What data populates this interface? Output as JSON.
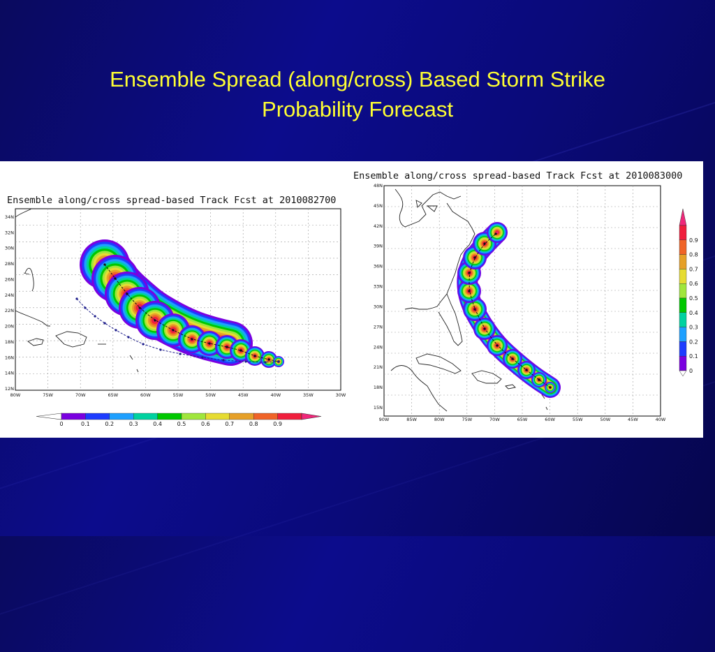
{
  "slide": {
    "title_line1": "Ensemble Spread (along/cross) Based Storm Strike",
    "title_line2": "Probability Forecast"
  },
  "left_map": {
    "title": "Ensemble along/cross spread-based Track Fcst at 2010082700",
    "lat_labels": [
      "34N",
      "32N",
      "30N",
      "28N",
      "26N",
      "24N",
      "22N",
      "20N",
      "18N",
      "16N",
      "14N",
      "12N"
    ],
    "lon_labels": [
      "80W",
      "75W",
      "70W",
      "65W",
      "60W",
      "55W",
      "50W",
      "45W",
      "40W",
      "35W",
      "30W"
    ]
  },
  "right_map": {
    "title": "Ensemble along/cross spread-based Track Fcst at 2010083000",
    "lat_labels": [
      "48N",
      "45N",
      "42N",
      "39N",
      "36N",
      "33N",
      "30N",
      "27N",
      "24N",
      "21N",
      "18N",
      "15N"
    ],
    "lon_labels": [
      "90W",
      "85W",
      "80W",
      "75W",
      "70W",
      "65W",
      "60W",
      "55W",
      "50W",
      "45W",
      "40W"
    ]
  },
  "colorbar": {
    "levels": [
      "0",
      "0.1",
      "0.2",
      "0.3",
      "0.4",
      "0.5",
      "0.6",
      "0.7",
      "0.8",
      "0.9"
    ],
    "colors": [
      "#7a00e0",
      "#1e3cff",
      "#1ea0ff",
      "#00d2a0",
      "#00c800",
      "#a0e63c",
      "#e6dc32",
      "#e6a028",
      "#f06428",
      "#f01e3c",
      "#f0287a"
    ]
  }
}
